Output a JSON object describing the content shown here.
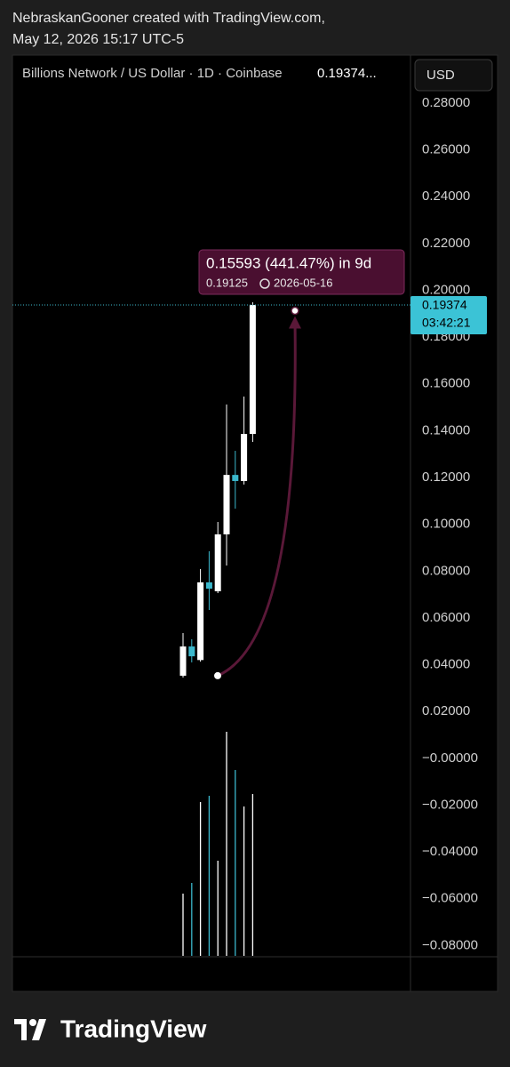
{
  "header": {
    "line1": "NebraskanGooner created with TradingView.com,",
    "line2": "May 12, 2026 15:17 UTC-5"
  },
  "footer": {
    "logo_text": "TradingView"
  },
  "chart_data": {
    "type": "candlestick",
    "title": "Billions Network / US Dollar · 1D · Coinbase",
    "price_text": "0.19374...",
    "currency_button": "USD",
    "categories": [
      null,
      null,
      null,
      null,
      null,
      null,
      null,
      null,
      null
    ],
    "open": [
      0.0353,
      0.0478,
      0.042,
      0.0752,
      0.0714,
      0.0957,
      0.1211,
      0.1185,
      0.1386
    ],
    "high": [
      0.0535,
      0.0509,
      0.0809,
      0.0885,
      0.101,
      0.1512,
      0.1314,
      0.1546,
      0.1949
    ],
    "low": [
      0.0345,
      0.041,
      0.0413,
      0.0634,
      0.0706,
      0.0824,
      0.1067,
      0.117,
      0.1352
    ],
    "close": [
      0.0478,
      0.0436,
      0.0752,
      0.0725,
      0.0957,
      0.1211,
      0.1185,
      0.1386,
      0.19374
    ],
    "volume": [
      70,
      82,
      173,
      180,
      107,
      252,
      209,
      168,
      182
    ],
    "volume_lim": [
      0,
      300
    ],
    "up_color": "#ffffff",
    "down_color": "#3bb8cc",
    "grid": false,
    "ylim": [
      -0.0844,
      0.3001
    ],
    "yticks": [
      {
        "value": 0.28,
        "label": "0.28000"
      },
      {
        "value": 0.26,
        "label": "0.26000"
      },
      {
        "value": 0.24,
        "label": "0.24000"
      },
      {
        "value": 0.22,
        "label": "0.22000"
      },
      {
        "value": 0.2,
        "label": "0.20000"
      },
      {
        "value": 0.18,
        "label": "0.18000"
      },
      {
        "value": 0.16,
        "label": "0.16000"
      },
      {
        "value": 0.14,
        "label": "0.14000"
      },
      {
        "value": 0.12,
        "label": "0.12000"
      },
      {
        "value": 0.1,
        "label": "0.10000"
      },
      {
        "value": 0.08,
        "label": "0.08000"
      },
      {
        "value": 0.06,
        "label": "0.06000"
      },
      {
        "value": 0.04,
        "label": "0.04000"
      },
      {
        "value": 0.02,
        "label": "0.02000"
      },
      {
        "value": 0,
        "label": "−0.00000"
      },
      {
        "value": -0.02,
        "label": "−0.02000"
      },
      {
        "value": -0.04,
        "label": "−0.04000"
      },
      {
        "value": -0.06,
        "label": "−0.06000"
      },
      {
        "value": -0.08,
        "label": "−0.08000"
      }
    ],
    "last_price": 0.19374,
    "countdown": "03:42:21",
    "measure": {
      "label": "0.15593 (441.47%) in 9d",
      "change": 0.15593,
      "target": 0.19125,
      "date": "2026-05-16"
    }
  }
}
